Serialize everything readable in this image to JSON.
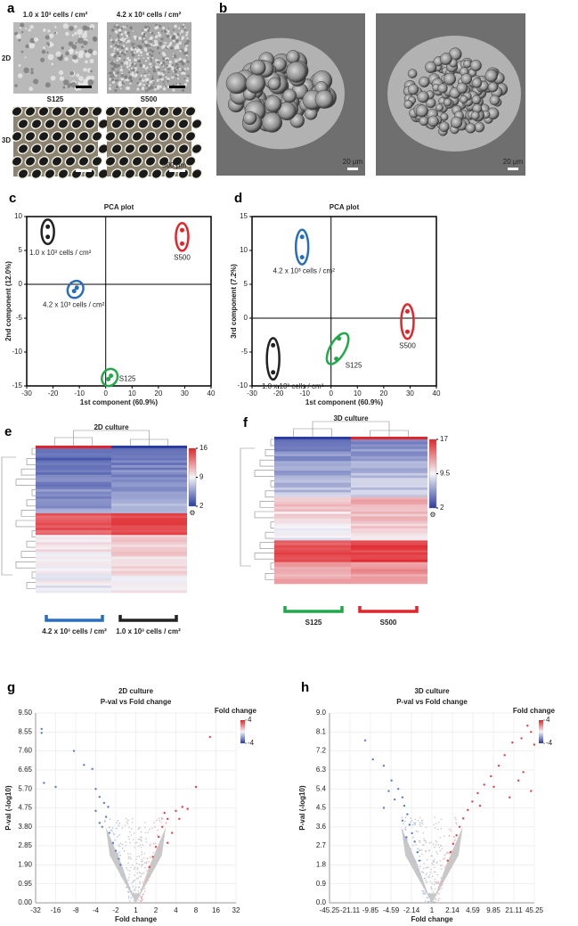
{
  "panels": {
    "a": {
      "label": "a",
      "col_titles": [
        "1.0 x 10³ cells / cm²",
        "4.2 x 10³ cells / cm²"
      ],
      "row_labels": [
        "2D",
        "3D"
      ],
      "sub_titles": [
        "S125",
        "S500"
      ],
      "scale_bar": "500 µm"
    },
    "b": {
      "label": "b",
      "scale_bar": "20 µm"
    },
    "e": {
      "label": "e",
      "title": "2D culture",
      "colorbar_lim": [
        2,
        16
      ],
      "colorbar_ticks": [
        16,
        9,
        2
      ],
      "groups": [
        {
          "name": "4.2 x 10³ cells / cm²",
          "color": "#2a6ebb"
        },
        {
          "name": "1.0 x 10³ cells / cm²",
          "color": "#222222"
        }
      ]
    },
    "f": {
      "label": "f",
      "title": "3D culture",
      "colorbar_lim": [
        2,
        17
      ],
      "colorbar_ticks": [
        17,
        9.5,
        2
      ],
      "groups": [
        {
          "name": "S125",
          "color": "#22a84a"
        },
        {
          "name": "S500",
          "color": "#e0262b"
        }
      ]
    }
  },
  "chart_data": [
    {
      "type": "scatter",
      "panel": "c",
      "title": "PCA plot",
      "x_label": "1st component (60.9%)",
      "y_label": "2nd component (12.0%)",
      "xlim": [
        -30,
        40
      ],
      "xticks": [
        -30,
        -20,
        -10,
        0,
        10,
        20,
        30,
        40
      ],
      "ylim": [
        -15,
        10
      ],
      "yticks": [
        -15,
        -10,
        -5,
        0,
        5,
        10
      ],
      "series": [
        {
          "name": "1.0 x 10³ cells / cm²",
          "color": "#222222",
          "x": [
            -22,
            -22
          ],
          "values": [
            8.5,
            7
          ]
        },
        {
          "name": "S500",
          "color": "#e0262b",
          "x": [
            29,
            29
          ],
          "values": [
            8,
            6
          ]
        },
        {
          "name": "4.2 x 10³ cells / cm²",
          "color": "#2a6ebb",
          "x": [
            -11,
            -12
          ],
          "values": [
            -0.5,
            -1
          ]
        },
        {
          "name": "S125",
          "color": "#22a84a",
          "x": [
            2,
            1
          ],
          "values": [
            -13.5,
            -14
          ]
        }
      ]
    },
    {
      "type": "scatter",
      "panel": "d",
      "title": "PCA plot",
      "x_label": "1st component (60.9%)",
      "y_label": "3rd component (7.2%)",
      "xlim": [
        -30,
        40
      ],
      "xticks": [
        -30,
        -20,
        -10,
        0,
        10,
        20,
        30,
        40
      ],
      "ylim": [
        -10,
        15
      ],
      "yticks": [
        -10,
        -5,
        0,
        5,
        10,
        15
      ],
      "series": [
        {
          "name": "4.2 x 10³ cells / cm²",
          "color": "#2a6ebb",
          "x": [
            -11,
            -11
          ],
          "values": [
            12,
            9
          ]
        },
        {
          "name": "1.0 x 10³ cells / cm²",
          "color": "#222222",
          "x": [
            -22,
            -22
          ],
          "values": [
            -4,
            -8
          ]
        },
        {
          "name": "S125",
          "color": "#22a84a",
          "x": [
            3,
            2
          ],
          "values": [
            -3,
            -6
          ]
        },
        {
          "name": "S500",
          "color": "#e0262b",
          "x": [
            29,
            29
          ],
          "values": [
            1,
            -2
          ]
        }
      ]
    },
    {
      "type": "volcano",
      "panel": "g",
      "title": "2D culture",
      "subtitle": "P-val vs Fold change",
      "x_label": "Fold change",
      "y_label": "P-val (-log10)",
      "xscale": "signed-log",
      "xlim": [
        -32,
        32
      ],
      "xticks": [
        -32,
        -16,
        -8,
        -4,
        -2,
        1,
        2,
        4,
        8,
        16,
        32
      ],
      "ylim": [
        0,
        9.5
      ],
      "yticks": [
        {
          "value": 0,
          "label": "0.00"
        },
        0.95,
        {
          "value": 1.9,
          "label": "1.90"
        },
        2.85,
        {
          "value": 3.8,
          "label": "3.80"
        },
        4.75,
        {
          "value": 5.7,
          "label": "5.70"
        },
        6.65,
        {
          "value": 7.6,
          "label": "7.60"
        },
        8.55,
        {
          "value": 9.5,
          "label": "9.50"
        }
      ],
      "grid": true,
      "colorbar_label": "Fold change",
      "colorbar_lim": [
        -4,
        4
      ],
      "colorbar_ticks": [
        4,
        -4
      ],
      "series": [
        {
          "color": "#5b7fc7",
          "x": [
            -26,
            -26,
            -8.5,
            -6,
            -4.5,
            -24,
            -16,
            -4,
            -3.5,
            -3,
            -4,
            -2.8,
            -3.2,
            -2.5,
            -2.2,
            -2,
            -1.8,
            -3.5,
            -2.6,
            -1.7
          ],
          "values": [
            8.7,
            8.5,
            7.6,
            6.9,
            6.7,
            6.0,
            5.8,
            5.7,
            5.3,
            5.0,
            4.6,
            4.3,
            3.8,
            3.5,
            3.0,
            2.6,
            2.2,
            4.0,
            4.8,
            1.9
          ]
        },
        {
          "color": "#d9464c",
          "x": [
            13,
            8,
            5,
            4,
            3,
            2.5,
            4.5,
            2.2,
            2,
            1.8,
            3.5,
            2.7,
            1.6,
            6,
            3
          ],
          "values": [
            8.3,
            5.8,
            4.8,
            4.6,
            4.2,
            3.8,
            4.2,
            3.3,
            2.8,
            2.3,
            3.5,
            4.5,
            1.8,
            4.7,
            3.0
          ]
        }
      ]
    },
    {
      "type": "volcano",
      "panel": "h",
      "title": "3D culture",
      "subtitle": "P-val vs Fold change",
      "x_label": "Fold change",
      "y_label": "P-val (-log10)",
      "xscale": "signed-log",
      "xlim": [
        -45.25,
        45.25
      ],
      "xticks": [
        -45.25,
        -21.11,
        -9.85,
        -4.59,
        -2.14,
        1,
        2.14,
        4.59,
        9.85,
        21.11,
        45.25
      ],
      "ylim": [
        0,
        9
      ],
      "yticks": [
        {
          "value": 0,
          "label": "0.0"
        },
        0.9,
        1.8,
        2.7,
        3.6,
        4.5,
        5.4,
        6.3,
        7.2,
        8.1,
        {
          "value": 9,
          "label": "9.0"
        }
      ],
      "grid": true,
      "colorbar_label": "Fold change",
      "colorbar_lim": [
        -4,
        4
      ],
      "colorbar_ticks": [
        4,
        -4
      ],
      "series": [
        {
          "color": "#5b7fc7",
          "x": [
            -12,
            -9,
            -6,
            -4.5,
            -3.5,
            -3,
            -2.8,
            -2.5,
            -2.3,
            -2.1,
            -1.9,
            -1.7,
            -6,
            -4,
            -3,
            -2.6,
            -1.6,
            -5
          ],
          "values": [
            7.7,
            6.8,
            6.5,
            5.8,
            5.4,
            5.0,
            4.6,
            4.2,
            3.7,
            3.3,
            2.9,
            2.4,
            4.5,
            4.9,
            3.9,
            3.1,
            2.0,
            5.3
          ]
        },
        {
          "color": "#d9464c",
          "x": [
            35,
            40,
            28,
            20,
            15,
            45,
            12,
            30,
            9,
            7,
            25,
            5.5,
            4.5,
            3.8,
            3.2,
            2.8,
            2.5,
            2.2,
            2,
            1.8,
            40,
            18,
            10,
            6
          ],
          "values": [
            8.4,
            8.1,
            7.8,
            7.6,
            7.0,
            7.5,
            6.5,
            6.2,
            6.0,
            5.6,
            5.8,
            5.2,
            4.8,
            4.4,
            4.0,
            3.6,
            3.2,
            2.8,
            2.4,
            2.0,
            5.3,
            5.0,
            5.5,
            4.6
          ]
        }
      ]
    }
  ]
}
